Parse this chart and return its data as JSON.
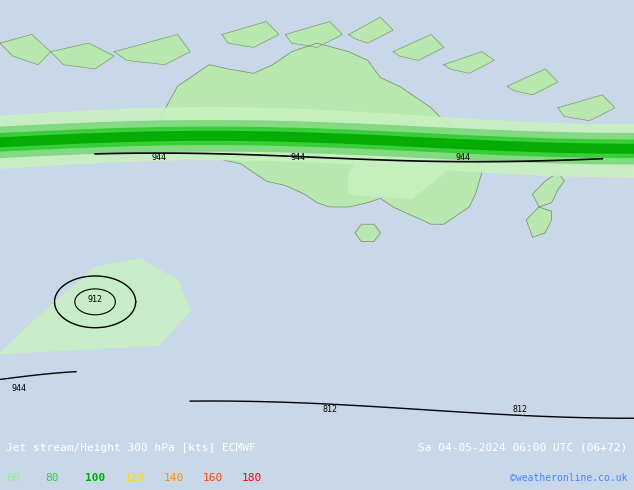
{
  "title_left": "Jet stream/Height 300 hPa [kts] ECMWF",
  "title_right": "Sa 04-05-2024 06:00 UTC (06+72)",
  "credit": "©weatheronline.co.uk",
  "legend_values": [
    "60",
    "80",
    "100",
    "120",
    "140",
    "160",
    "180"
  ],
  "legend_colors": [
    "#90ee90",
    "#32cd32",
    "#00aa00",
    "#ffdd00",
    "#ff8c00",
    "#ff4500",
    "#ff0000"
  ],
  "background_color": "#d8e8f0",
  "land_color": "#b8e8b0",
  "land_border_color": "#808080",
  "contour_color": "#000000",
  "jet_colors": {
    "light_green_1": "#c8f0c8",
    "light_green_2": "#90ee90",
    "medium_green": "#32cd32",
    "dark_green": "#00aa00",
    "yellow": "#ffdd00",
    "orange": "#ff8c00",
    "red": "#ff4500"
  },
  "figsize": [
    6.34,
    4.9
  ],
  "dpi": 100,
  "font_size_title": 8,
  "font_size_legend": 8,
  "font_size_credit": 7
}
